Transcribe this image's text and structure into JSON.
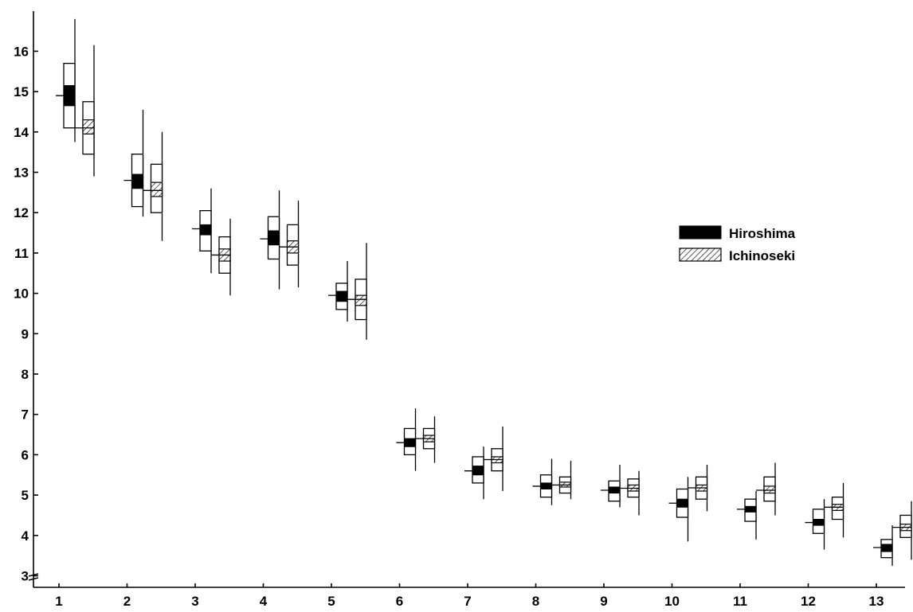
{
  "chart_data": {
    "type": "box",
    "title": "",
    "xlabel": "",
    "ylabel": "",
    "categories": [
      "1",
      "2",
      "3",
      "4",
      "5",
      "6",
      "7",
      "8",
      "9",
      "10",
      "11",
      "12",
      "13"
    ],
    "y_ticks": [
      "3",
      "4",
      "5",
      "6",
      "7",
      "8",
      "9",
      "10",
      "11",
      "12",
      "13",
      "14",
      "15",
      "16"
    ],
    "ylim": [
      2.8,
      17.2
    ],
    "y_axis_break": true,
    "grid": false,
    "legend_position": "right",
    "colors": {
      "Hiroshima": "#000000",
      "Ichinoseki": "#ffffff"
    },
    "series": [
      {
        "name": "Hiroshima",
        "fill": "solid",
        "boxes": [
          {
            "wmin": 13.75,
            "bmin": 14.1,
            "imin": 14.65,
            "mean": 14.9,
            "imax": 15.15,
            "bmax": 15.7,
            "wmax": 16.8
          },
          {
            "wmin": 11.9,
            "bmin": 12.15,
            "imin": 12.6,
            "mean": 12.8,
            "imax": 12.95,
            "bmax": 13.45,
            "wmax": 14.55
          },
          {
            "wmin": 10.5,
            "bmin": 11.05,
            "imin": 11.45,
            "mean": 11.6,
            "imax": 11.7,
            "bmax": 12.05,
            "wmax": 12.6
          },
          {
            "wmin": 10.1,
            "bmin": 10.85,
            "imin": 11.2,
            "mean": 11.35,
            "imax": 11.55,
            "bmax": 11.9,
            "wmax": 12.55
          },
          {
            "wmin": 9.3,
            "bmin": 9.6,
            "imin": 9.8,
            "mean": 9.95,
            "imax": 10.05,
            "bmax": 10.25,
            "wmax": 10.8
          },
          {
            "wmin": 5.6,
            "bmin": 6.0,
            "imin": 6.2,
            "mean": 6.3,
            "imax": 6.4,
            "bmax": 6.65,
            "wmax": 7.15
          },
          {
            "wmin": 4.9,
            "bmin": 5.3,
            "imin": 5.5,
            "mean": 5.6,
            "imax": 5.72,
            "bmax": 5.95,
            "wmax": 6.2
          },
          {
            "wmin": 4.75,
            "bmin": 4.95,
            "imin": 5.15,
            "mean": 5.22,
            "imax": 5.3,
            "bmax": 5.5,
            "wmax": 5.9
          },
          {
            "wmin": 4.7,
            "bmin": 4.85,
            "imin": 5.05,
            "mean": 5.12,
            "imax": 5.2,
            "bmax": 5.35,
            "wmax": 5.75
          },
          {
            "wmin": 3.85,
            "bmin": 4.45,
            "imin": 4.7,
            "mean": 4.8,
            "imax": 4.9,
            "bmax": 5.15,
            "wmax": 5.45
          },
          {
            "wmin": 3.9,
            "bmin": 4.35,
            "imin": 4.58,
            "mean": 4.65,
            "imax": 4.72,
            "bmax": 4.9,
            "wmax": 5.1
          },
          {
            "wmin": 3.65,
            "bmin": 4.05,
            "imin": 4.25,
            "mean": 4.32,
            "imax": 4.4,
            "bmax": 4.65,
            "wmax": 4.9
          },
          {
            "wmin": 3.25,
            "bmin": 3.45,
            "imin": 3.6,
            "mean": 3.7,
            "imax": 3.78,
            "bmax": 3.9,
            "wmax": 4.25
          }
        ]
      },
      {
        "name": "Ichinoseki",
        "fill": "hatched",
        "boxes": [
          {
            "wmin": 12.9,
            "bmin": 13.45,
            "imin": 13.95,
            "mean": 14.1,
            "imax": 14.3,
            "bmax": 14.75,
            "wmax": 16.15
          },
          {
            "wmin": 11.3,
            "bmin": 12.0,
            "imin": 12.4,
            "mean": 12.55,
            "imax": 12.75,
            "bmax": 13.2,
            "wmax": 14.0
          },
          {
            "wmin": 9.95,
            "bmin": 10.5,
            "imin": 10.8,
            "mean": 10.95,
            "imax": 11.1,
            "bmax": 11.4,
            "wmax": 11.85
          },
          {
            "wmin": 10.15,
            "bmin": 10.7,
            "imin": 11.0,
            "mean": 11.15,
            "imax": 11.3,
            "bmax": 11.7,
            "wmax": 12.3
          },
          {
            "wmin": 8.85,
            "bmin": 9.35,
            "imin": 9.7,
            "mean": 9.85,
            "imax": 9.95,
            "bmax": 10.35,
            "wmax": 11.25
          },
          {
            "wmin": 5.8,
            "bmin": 6.15,
            "imin": 6.32,
            "mean": 6.4,
            "imax": 6.48,
            "bmax": 6.65,
            "wmax": 6.95
          },
          {
            "wmin": 5.1,
            "bmin": 5.6,
            "imin": 5.8,
            "mean": 5.88,
            "imax": 5.95,
            "bmax": 6.15,
            "wmax": 6.7
          },
          {
            "wmin": 4.9,
            "bmin": 5.05,
            "imin": 5.2,
            "mean": 5.25,
            "imax": 5.32,
            "bmax": 5.45,
            "wmax": 5.85
          },
          {
            "wmin": 4.5,
            "bmin": 4.95,
            "imin": 5.1,
            "mean": 5.17,
            "imax": 5.25,
            "bmax": 5.4,
            "wmax": 5.6
          },
          {
            "wmin": 4.6,
            "bmin": 4.9,
            "imin": 5.1,
            "mean": 5.18,
            "imax": 5.25,
            "bmax": 5.45,
            "wmax": 5.75
          },
          {
            "wmin": 4.5,
            "bmin": 4.85,
            "imin": 5.05,
            "mean": 5.12,
            "imax": 5.22,
            "bmax": 5.45,
            "wmax": 5.8
          },
          {
            "wmin": 3.95,
            "bmin": 4.4,
            "imin": 4.62,
            "mean": 4.7,
            "imax": 4.77,
            "bmax": 4.95,
            "wmax": 5.3
          },
          {
            "wmin": 3.4,
            "bmin": 3.95,
            "imin": 4.12,
            "mean": 4.2,
            "imax": 4.28,
            "bmax": 4.5,
            "wmax": 4.85
          }
        ]
      }
    ]
  }
}
